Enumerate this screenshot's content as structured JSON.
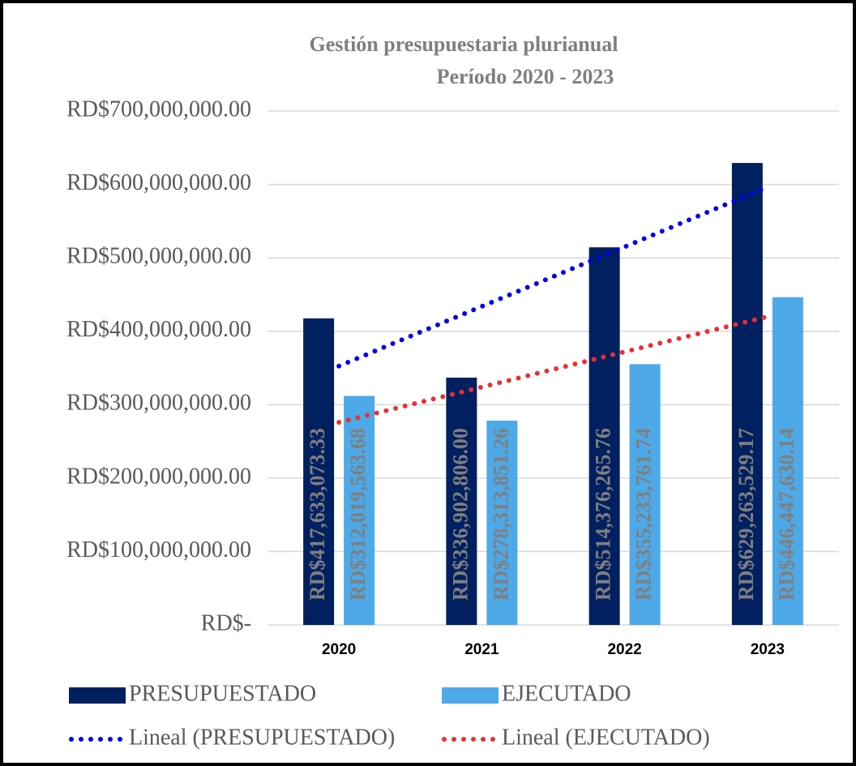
{
  "chart_data": {
    "type": "bar",
    "title": "Gestión presupuestaria plurianual",
    "subtitle": "Período 2020 - 2023",
    "categories": [
      "2020",
      "2021",
      "2022",
      "2023"
    ],
    "series": [
      {
        "name": "PRESUPUESTADO",
        "color": "#002060",
        "kind": "bar",
        "values": [
          417633073.33,
          336902806.0,
          514376265.76,
          629263529.17
        ],
        "value_labels": [
          "RD$417,633,073.33",
          "RD$336,902,806.00",
          "RD$514,376,265.76",
          "RD$629,263,529.17"
        ]
      },
      {
        "name": "EJECUTADO",
        "color": "#4da9e8",
        "kind": "bar",
        "values": [
          312019563.68,
          278313851.26,
          355233761.74,
          446447630.14
        ],
        "value_labels": [
          "RD$312,019,563.68",
          "RD$278,313,851.26",
          "RD$355,233,761.74",
          "RD$446,447,630.14"
        ]
      },
      {
        "name": "Lineal (PRESUPUESTADO)",
        "color": "#0000ee",
        "kind": "trend",
        "values": [
          352600000,
          433900000,
          515100000,
          596400000
        ]
      },
      {
        "name": "Lineal (EJECUTADO)",
        "color": "#e83030",
        "kind": "trend",
        "values": [
          276000000,
          324000000,
          372000000,
          420000000
        ]
      }
    ],
    "ylim": [
      0,
      700000000
    ],
    "yticks": [
      {
        "value": 0,
        "label": "RD$-"
      },
      {
        "value": 100000000,
        "label": "RD$100,000,000.00"
      },
      {
        "value": 200000000,
        "label": "RD$200,000,000.00"
      },
      {
        "value": 300000000,
        "label": "RD$300,000,000.00"
      },
      {
        "value": 400000000,
        "label": "RD$400,000,000.00"
      },
      {
        "value": 500000000,
        "label": "RD$500,000,000.00"
      },
      {
        "value": 600000000,
        "label": "RD$600,000,000.00"
      },
      {
        "value": 700000000,
        "label": "RD$700,000,000.00"
      }
    ],
    "grid": true,
    "legend": "bottom"
  }
}
